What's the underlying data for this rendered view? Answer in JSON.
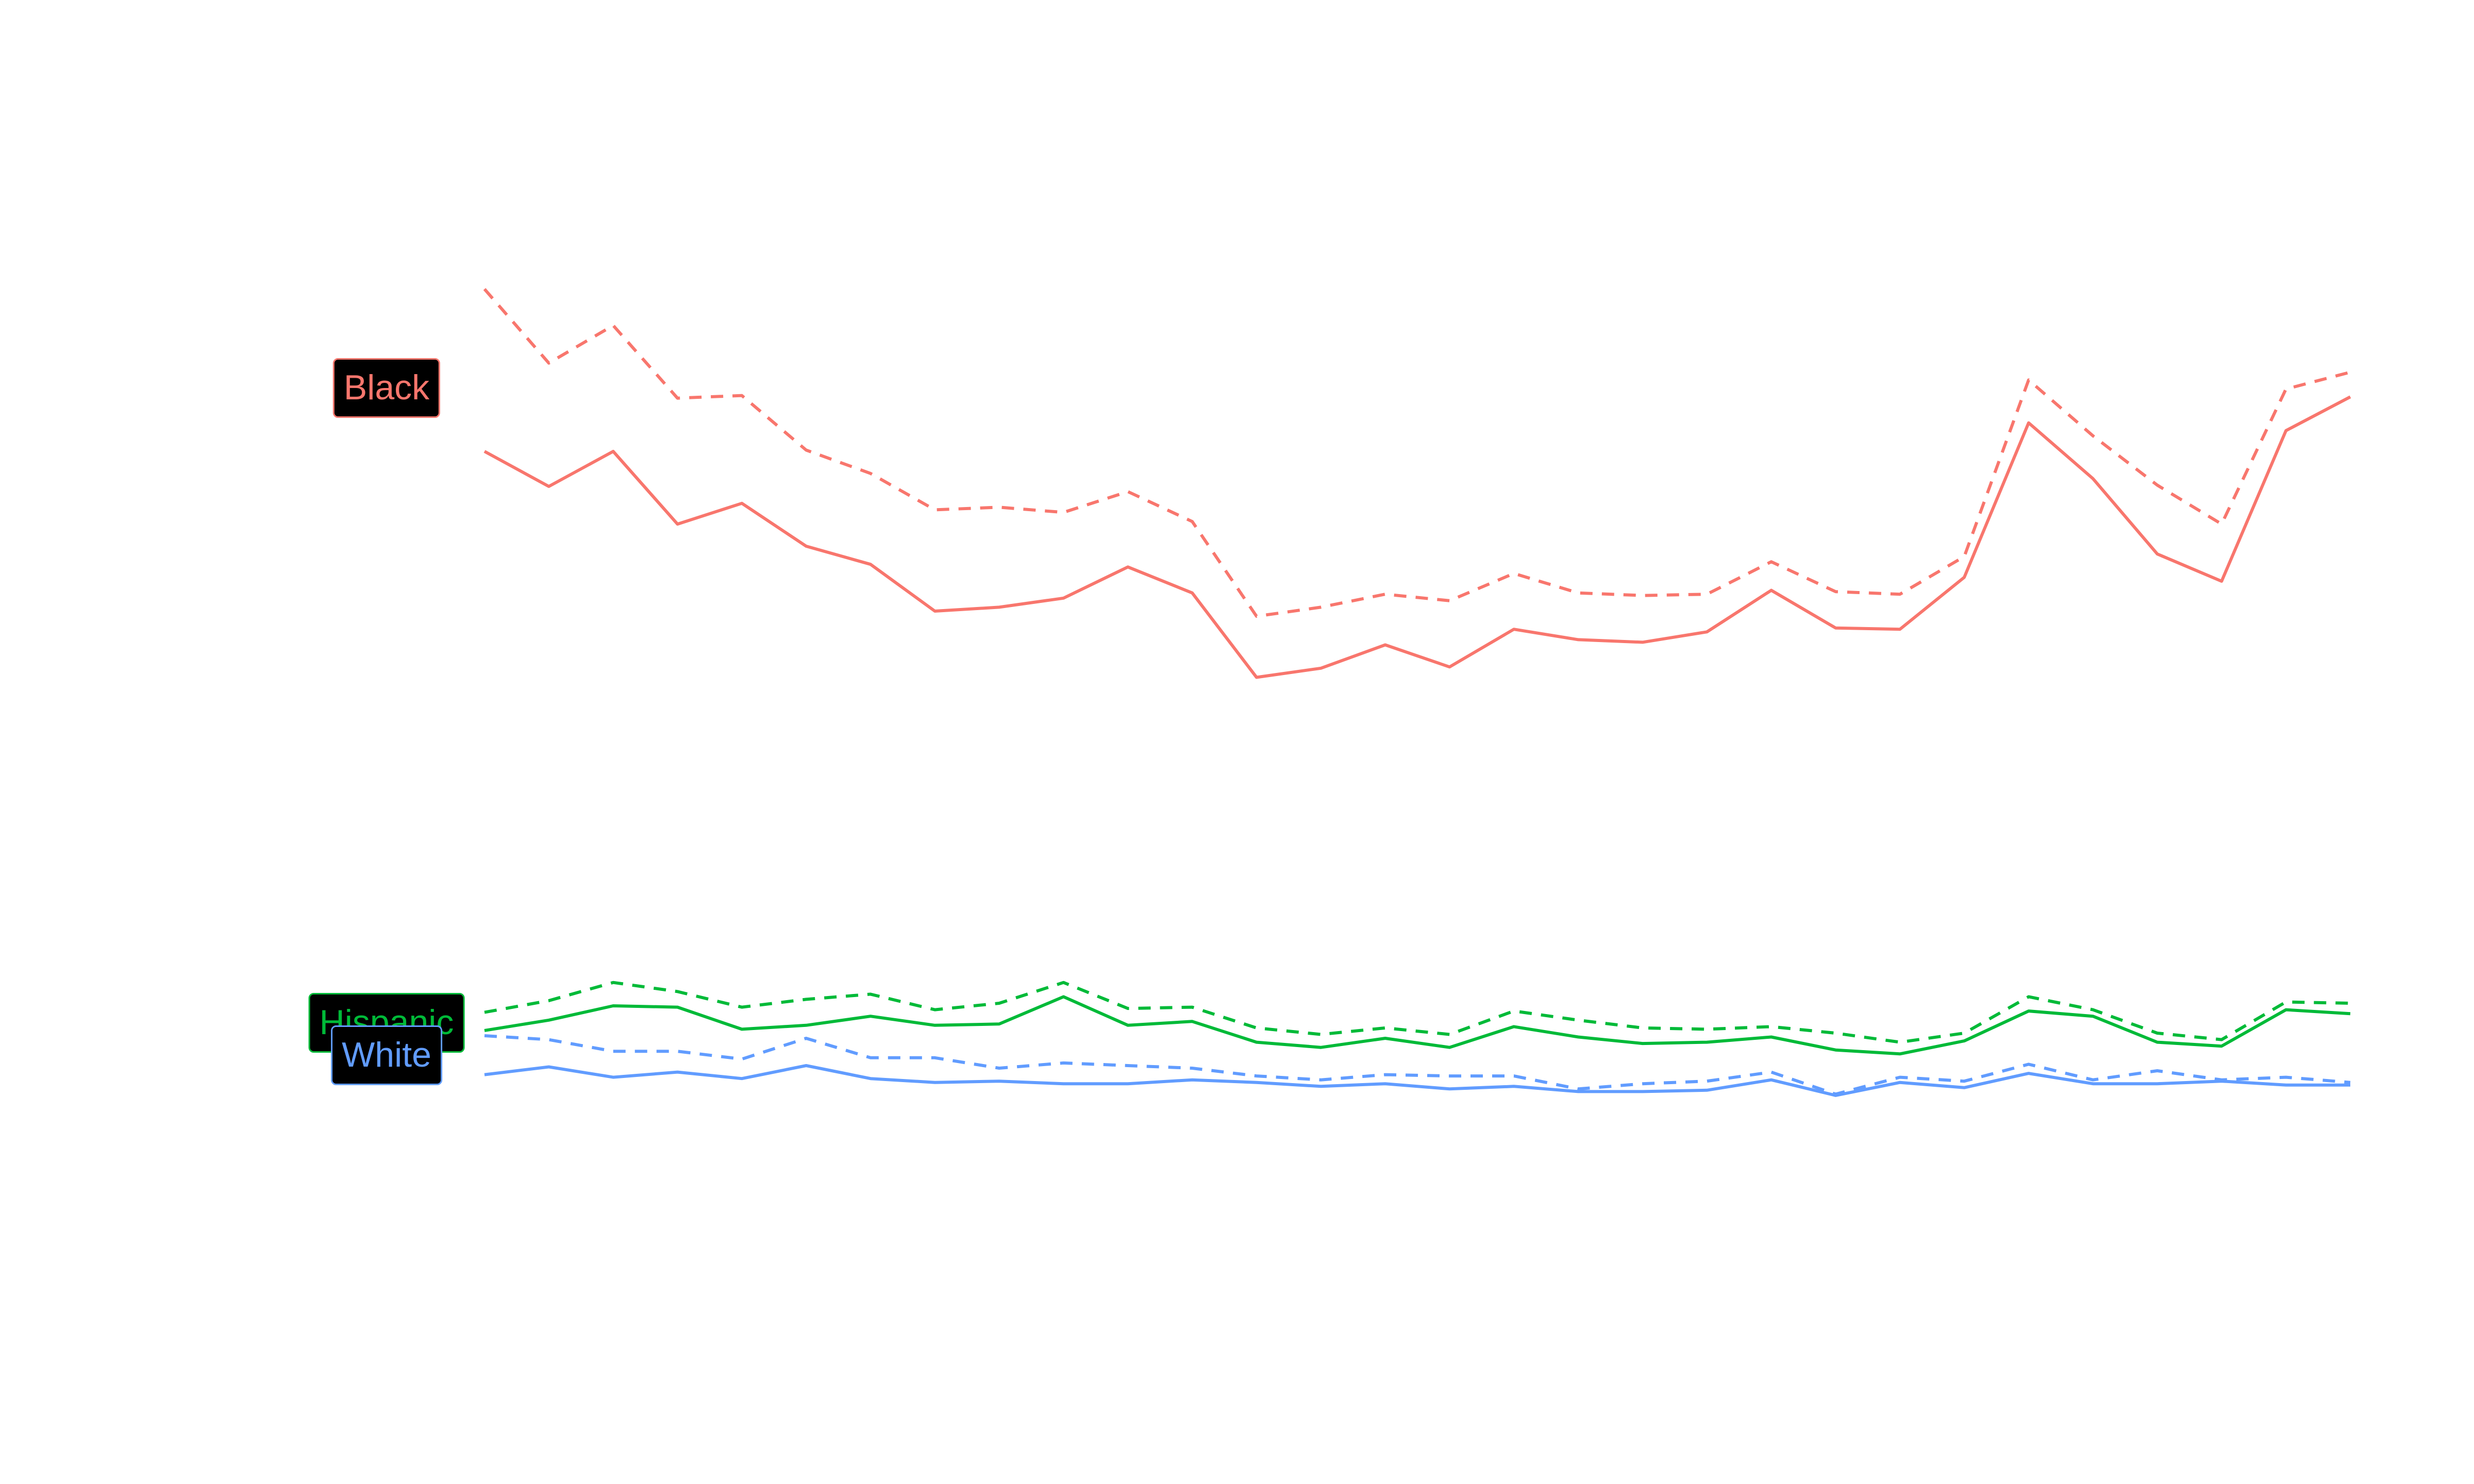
{
  "chart_data": {
    "type": "line",
    "x": [
      1,
      2,
      3,
      4,
      5,
      6,
      7,
      8,
      9,
      10,
      11,
      12,
      13,
      14,
      15,
      16,
      17,
      18,
      19,
      20,
      21,
      22,
      23,
      24,
      25,
      26,
      27,
      28,
      29,
      30
    ],
    "title": "",
    "xlabel": "",
    "ylabel": "",
    "grid": false,
    "axes_visible": false,
    "ylim": [
      0,
      100
    ],
    "series": [
      {
        "name": "Black",
        "style": "solid",
        "color": "#F8766D",
        "values": [
          70.0,
          67.3,
          70.0,
          64.4,
          66.0,
          62.7,
          61.3,
          57.7,
          58.0,
          58.7,
          61.1,
          59.1,
          52.6,
          53.3,
          55.1,
          53.4,
          56.3,
          55.5,
          55.3,
          56.1,
          59.3,
          56.4,
          56.3,
          60.3,
          72.2,
          67.9,
          62.1,
          60.0,
          71.6,
          74.2
        ]
      },
      {
        "name": "Black",
        "style": "dashed",
        "color": "#F8766D",
        "values": [
          82.5,
          76.8,
          79.7,
          74.1,
          74.3,
          70.1,
          68.3,
          65.5,
          65.7,
          65.3,
          66.9,
          64.6,
          57.3,
          58.0,
          59.0,
          58.5,
          60.6,
          59.1,
          58.9,
          59.0,
          61.5,
          59.2,
          59.0,
          61.9,
          75.5,
          71.2,
          67.4,
          64.4,
          74.8,
          76.1
        ]
      },
      {
        "name": "Hispanic",
        "style": "solid",
        "color": "#00BA38",
        "values": [
          25.4,
          26.2,
          27.3,
          27.2,
          25.5,
          25.8,
          26.5,
          25.8,
          25.9,
          28.0,
          25.8,
          26.1,
          24.5,
          24.1,
          24.8,
          24.1,
          25.7,
          24.9,
          24.4,
          24.5,
          24.9,
          23.9,
          23.6,
          24.6,
          26.9,
          26.5,
          24.5,
          24.2,
          27.0,
          26.7
        ]
      },
      {
        "name": "Hispanic",
        "style": "dashed",
        "color": "#00BA38",
        "values": [
          26.8,
          27.7,
          29.1,
          28.4,
          27.2,
          27.8,
          28.2,
          27.0,
          27.5,
          29.1,
          27.1,
          27.2,
          25.6,
          25.1,
          25.6,
          25.1,
          26.9,
          26.2,
          25.6,
          25.5,
          25.7,
          25.2,
          24.5,
          25.2,
          28.0,
          27.0,
          25.2,
          24.7,
          27.6,
          27.5
        ]
      },
      {
        "name": "White",
        "style": "solid",
        "color": "#619CFF",
        "values": [
          22.0,
          22.6,
          21.8,
          22.2,
          21.7,
          22.7,
          21.7,
          21.4,
          21.5,
          21.3,
          21.3,
          21.6,
          21.4,
          21.1,
          21.3,
          20.9,
          21.1,
          20.7,
          20.7,
          20.8,
          21.6,
          20.4,
          21.4,
          21.0,
          22.1,
          21.3,
          21.3,
          21.5,
          21.2,
          21.2
        ]
      },
      {
        "name": "White",
        "style": "dashed",
        "color": "#619CFF",
        "values": [
          25.0,
          24.7,
          23.8,
          23.8,
          23.2,
          24.8,
          23.3,
          23.3,
          22.5,
          22.9,
          22.7,
          22.5,
          21.9,
          21.6,
          22.0,
          21.9,
          21.9,
          20.9,
          21.3,
          21.5,
          22.2,
          20.5,
          21.8,
          21.5,
          22.8,
          21.6,
          22.3,
          21.6,
          21.8,
          21.4
        ]
      }
    ],
    "legend": "direct-labels-left",
    "labels": [
      {
        "text": "Black",
        "color": "#F8766D",
        "anchor_value": 74.9
      },
      {
        "text": "Hispanic",
        "color": "#00BA38",
        "anchor_value": 26.0
      },
      {
        "text": "White",
        "color": "#619CFF",
        "anchor_value": 23.5
      }
    ]
  }
}
